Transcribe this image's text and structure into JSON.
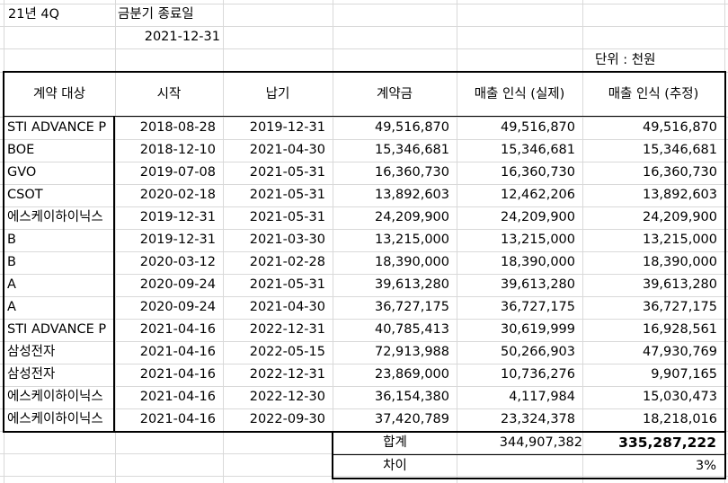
{
  "top": {
    "quarter_label": "21년 4Q",
    "period_end_label": "금분기 종료일",
    "period_end_date": "2021-12-31",
    "unit_label": "단위 : 천원"
  },
  "table": {
    "headers": [
      "계약 대상",
      "시작",
      "납기",
      "계약금",
      "매출 인식 (실제)",
      "매출 인식 (추정)"
    ],
    "rows": [
      [
        "STI ADVANCE P",
        "2018-08-28",
        "2019-12-31",
        "49,516,870",
        "49,516,870",
        "49,516,870"
      ],
      [
        "BOE",
        "2018-12-10",
        "2021-04-30",
        "15,346,681",
        "15,346,681",
        "15,346,681"
      ],
      [
        "GVO",
        "2019-07-08",
        "2021-05-31",
        "16,360,730",
        "16,360,730",
        "16,360,730"
      ],
      [
        "CSOT",
        "2020-02-18",
        "2021-05-31",
        "13,892,603",
        "12,462,206",
        "13,892,603"
      ],
      [
        "에스케이하이닉스",
        "2019-12-31",
        "2021-05-31",
        "24,209,900",
        "24,209,900",
        "24,209,900"
      ],
      [
        "B",
        "2019-12-31",
        "2021-03-30",
        "13,215,000",
        "13,215,000",
        "13,215,000"
      ],
      [
        "B",
        "2020-03-12",
        "2021-02-28",
        "18,390,000",
        "18,390,000",
        "18,390,000"
      ],
      [
        "A",
        "2020-09-24",
        "2021-05-31",
        "39,613,280",
        "39,613,280",
        "39,613,280"
      ],
      [
        "A",
        "2020-09-24",
        "2021-04-30",
        "36,727,175",
        "36,727,175",
        "36,727,175"
      ],
      [
        "STI ADVANCE P",
        "2021-04-16",
        "2022-12-31",
        "40,785,413",
        "30,619,999",
        "16,928,561"
      ],
      [
        "삼성전자",
        "2021-04-16",
        "2022-05-15",
        "72,913,988",
        "50,266,903",
        "47,930,769"
      ],
      [
        "삼성전자",
        "2021-04-16",
        "2022-12-31",
        "23,869,000",
        "10,736,276",
        "9,907,165"
      ],
      [
        "에스케이하이닉스",
        "2021-04-16",
        "2022-12-30",
        "36,154,380",
        "4,117,984",
        "15,030,473"
      ],
      [
        "에스케이하이닉스",
        "2021-04-16",
        "2022-09-30",
        "37,420,789",
        "23,324,378",
        "18,218,016"
      ]
    ]
  },
  "summary": {
    "total_label": "합계",
    "total_actual": "344,907,382",
    "total_estimate": "335,287,222",
    "diff_label": "차이",
    "diff_value": "3%"
  }
}
